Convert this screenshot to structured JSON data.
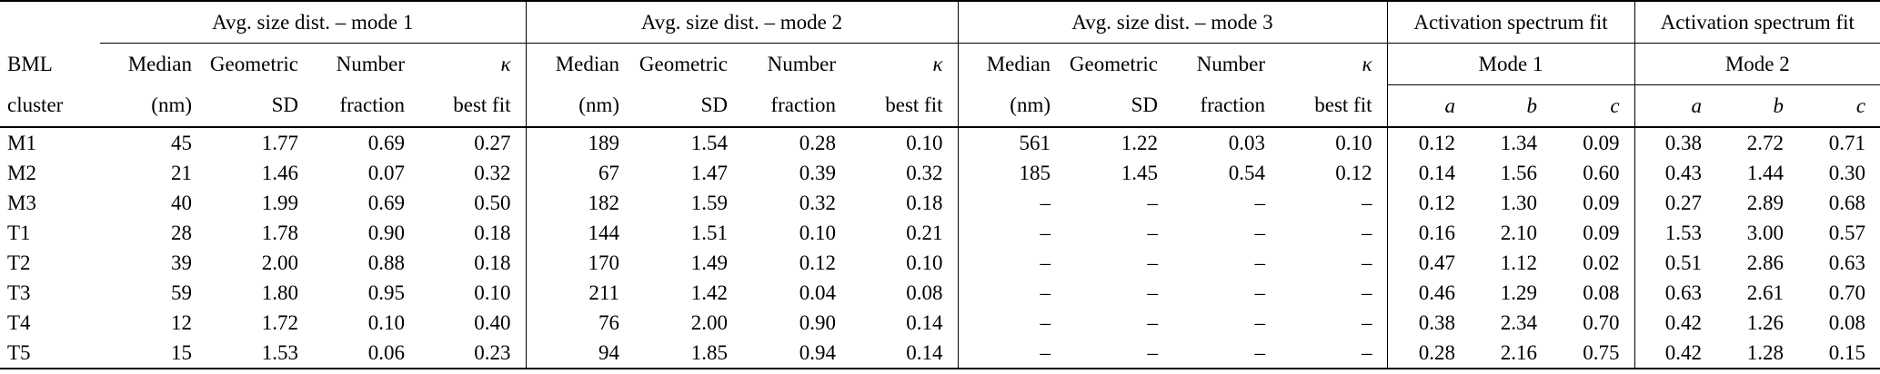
{
  "header": {
    "groups": [
      {
        "label": "Avg. size dist. – mode 1"
      },
      {
        "label": "Avg. size dist. – mode 2"
      },
      {
        "label": "Avg. size dist. – mode 3"
      },
      {
        "label": "Activation spectrum fit"
      },
      {
        "label": "Activation spectrum fit"
      }
    ],
    "row_label": {
      "line1": "BML",
      "line2": "cluster"
    },
    "size_dist_columns": {
      "line1": [
        "Median",
        "Geometric",
        "Number",
        "κ"
      ],
      "line2": [
        "(nm)",
        "SD",
        "fraction",
        "best fit"
      ]
    },
    "fit_modes": [
      "Mode 1",
      "Mode 2"
    ],
    "fit_columns": [
      "a",
      "b",
      "c"
    ]
  },
  "rows": [
    {
      "cluster": "M1",
      "mode1": [
        "45",
        "1.77",
        "0.69",
        "0.27"
      ],
      "mode2": [
        "189",
        "1.54",
        "0.28",
        "0.10"
      ],
      "mode3": [
        "561",
        "1.22",
        "0.03",
        "0.10"
      ],
      "fit1": [
        "0.12",
        "1.34",
        "0.09"
      ],
      "fit2": [
        "0.38",
        "2.72",
        "0.71"
      ]
    },
    {
      "cluster": "M2",
      "mode1": [
        "21",
        "1.46",
        "0.07",
        "0.32"
      ],
      "mode2": [
        "67",
        "1.47",
        "0.39",
        "0.32"
      ],
      "mode3": [
        "185",
        "1.45",
        "0.54",
        "0.12"
      ],
      "fit1": [
        "0.14",
        "1.56",
        "0.60"
      ],
      "fit2": [
        "0.43",
        "1.44",
        "0.30"
      ]
    },
    {
      "cluster": "M3",
      "mode1": [
        "40",
        "1.99",
        "0.69",
        "0.50"
      ],
      "mode2": [
        "182",
        "1.59",
        "0.32",
        "0.18"
      ],
      "mode3": [
        "–",
        "–",
        "–",
        "–"
      ],
      "fit1": [
        "0.12",
        "1.30",
        "0.09"
      ],
      "fit2": [
        "0.27",
        "2.89",
        "0.68"
      ]
    },
    {
      "cluster": "T1",
      "mode1": [
        "28",
        "1.78",
        "0.90",
        "0.18"
      ],
      "mode2": [
        "144",
        "1.51",
        "0.10",
        "0.21"
      ],
      "mode3": [
        "–",
        "–",
        "–",
        "–"
      ],
      "fit1": [
        "0.16",
        "2.10",
        "0.09"
      ],
      "fit2": [
        "1.53",
        "3.00",
        "0.57"
      ]
    },
    {
      "cluster": "T2",
      "mode1": [
        "39",
        "2.00",
        "0.88",
        "0.18"
      ],
      "mode2": [
        "170",
        "1.49",
        "0.12",
        "0.10"
      ],
      "mode3": [
        "–",
        "–",
        "–",
        "–"
      ],
      "fit1": [
        "0.47",
        "1.12",
        "0.02"
      ],
      "fit2": [
        "0.51",
        "2.86",
        "0.63"
      ]
    },
    {
      "cluster": "T3",
      "mode1": [
        "59",
        "1.80",
        "0.95",
        "0.10"
      ],
      "mode2": [
        "211",
        "1.42",
        "0.04",
        "0.08"
      ],
      "mode3": [
        "–",
        "–",
        "–",
        "–"
      ],
      "fit1": [
        "0.46",
        "1.29",
        "0.08"
      ],
      "fit2": [
        "0.63",
        "2.61",
        "0.70"
      ]
    },
    {
      "cluster": "T4",
      "mode1": [
        "12",
        "1.72",
        "0.10",
        "0.40"
      ],
      "mode2": [
        "76",
        "2.00",
        "0.90",
        "0.14"
      ],
      "mode3": [
        "–",
        "–",
        "–",
        "–"
      ],
      "fit1": [
        "0.38",
        "2.34",
        "0.70"
      ],
      "fit2": [
        "0.42",
        "1.26",
        "0.08"
      ]
    },
    {
      "cluster": "T5",
      "mode1": [
        "15",
        "1.53",
        "0.06",
        "0.23"
      ],
      "mode2": [
        "94",
        "1.85",
        "0.94",
        "0.14"
      ],
      "mode3": [
        "–",
        "–",
        "–",
        "–"
      ],
      "fit1": [
        "0.28",
        "2.16",
        "0.75"
      ],
      "fit2": [
        "0.42",
        "1.28",
        "0.15"
      ]
    }
  ]
}
